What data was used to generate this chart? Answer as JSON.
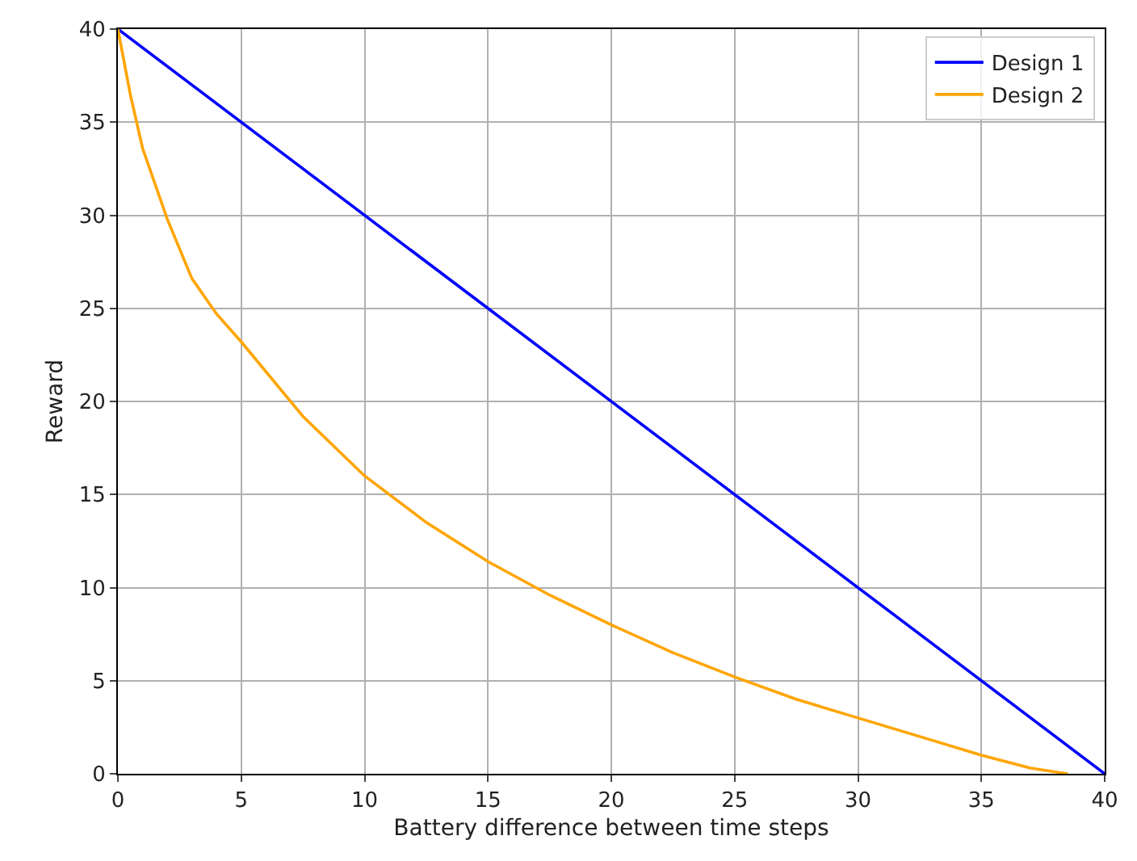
{
  "chart_data": {
    "type": "line",
    "xlabel": "Battery difference between time steps",
    "ylabel": "Reward",
    "xlim": [
      0,
      40
    ],
    "ylim": [
      0,
      40
    ],
    "xticks": [
      0,
      5,
      10,
      15,
      20,
      25,
      30,
      35,
      40
    ],
    "yticks": [
      0,
      5,
      10,
      15,
      20,
      25,
      30,
      35,
      40
    ],
    "grid": true,
    "legend": "top right",
    "line_style": "solid",
    "marker": "none",
    "series": [
      {
        "name": "Design 1",
        "color": "#0000ff",
        "x": [
          0,
          40
        ],
        "values": [
          40,
          0
        ]
      },
      {
        "name": "Design 2",
        "color": "#ffa500",
        "x": [
          0,
          0.5,
          1,
          2,
          3,
          4,
          5,
          7.5,
          10,
          12.5,
          15,
          17.5,
          20,
          22.5,
          25,
          27.5,
          30,
          32.5,
          35,
          37,
          38.5
        ],
        "values": [
          40,
          36.5,
          33.6,
          29.8,
          26.6,
          24.7,
          23.2,
          19.2,
          16,
          13.5,
          11.4,
          9.6,
          8,
          6.5,
          5.2,
          4,
          3,
          2,
          1,
          0.3,
          0
        ]
      }
    ]
  }
}
